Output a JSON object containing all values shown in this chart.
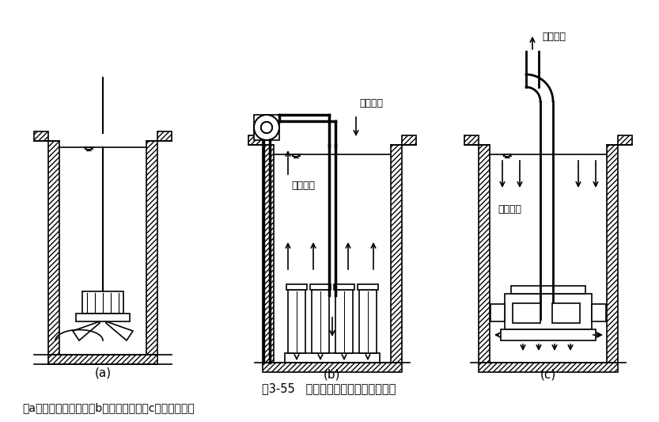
{
  "title": "图3-55   不同成槽方式的泥浆流动状态",
  "subtitle": "（a）泥浆静止方式；（b）正循环式；（c）反循环方式",
  "label_a": "(a)",
  "label_b": "(b)",
  "label_c": "(c)",
  "label_b_top": "净化泥浆",
  "label_b_left": "携砂泥浆",
  "label_c_top": "携砂泥浆",
  "label_c_mid": "净化泥浆",
  "bg_color": "#ffffff",
  "line_color": "#000000",
  "fig_w": 8.33,
  "fig_h": 5.33,
  "dpi": 100
}
